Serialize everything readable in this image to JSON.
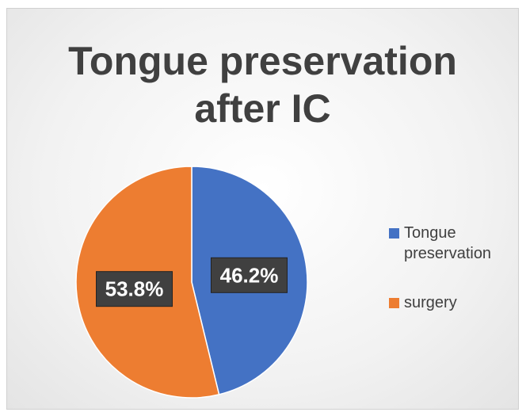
{
  "chart_data": {
    "type": "pie",
    "title": "Tongue preservation after IC",
    "categories": [
      "Tongue preservation",
      "surgery"
    ],
    "values": [
      46.2,
      53.8
    ],
    "value_labels": [
      "46.2%",
      "53.8%"
    ],
    "colors": [
      "#4472c4",
      "#ed7d31"
    ],
    "legend": "right"
  }
}
